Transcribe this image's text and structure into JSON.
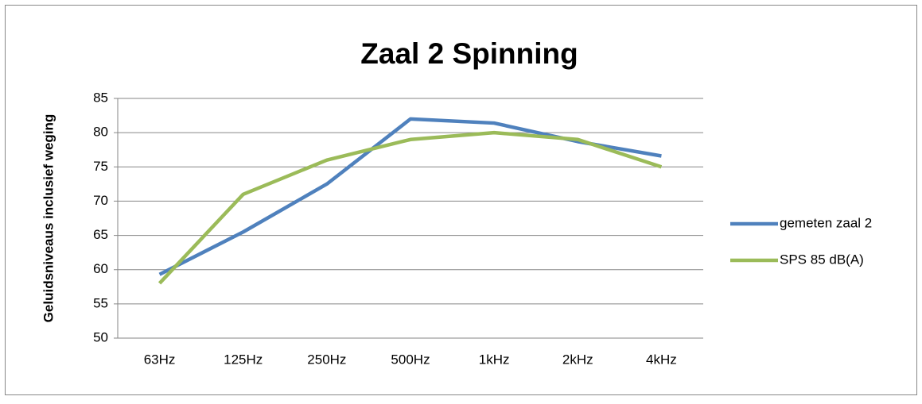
{
  "chart_data": {
    "type": "line",
    "title": "Zaal 2 Spinning",
    "y_label": "Geluidsniveaus inclusief weging",
    "categories": [
      "63Hz",
      "125Hz",
      "250Hz",
      "500Hz",
      "1kHz",
      "2kHz",
      "4kHz"
    ],
    "series": [
      {
        "name": "gemeten zaal 2",
        "color": "#4f81bd",
        "values": [
          59.3,
          65.5,
          72.5,
          82,
          81.4,
          78.7,
          76.6
        ]
      },
      {
        "name": "SPS 85 dB(A)",
        "color": "#9bbb59",
        "values": [
          58,
          71,
          76,
          79,
          80,
          79,
          75
        ]
      }
    ],
    "ylim": [
      50,
      85
    ],
    "yticks": [
      50,
      55,
      60,
      65,
      70,
      75,
      80,
      85
    ],
    "grid": true,
    "legend": "right"
  }
}
